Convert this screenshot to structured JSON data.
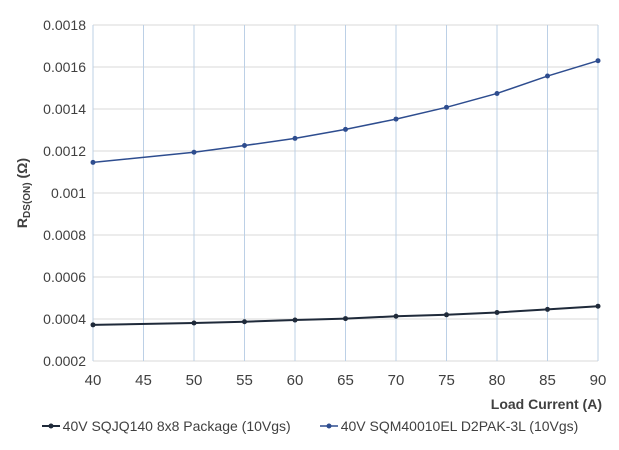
{
  "chart_data": {
    "type": "line",
    "xlabel": "Load Current (A)",
    "ylabel_main": "R",
    "ylabel_sub": "DS(ON)",
    "ylabel_unit": " (Ω)",
    "xlim": [
      40,
      90
    ],
    "ylim": [
      0.0002,
      0.0018
    ],
    "xticks": [
      "40",
      "45",
      "50",
      "55",
      "60",
      "65",
      "70",
      "75",
      "80",
      "85",
      "90"
    ],
    "yticks": [
      "0.0002",
      "0.0004",
      "0.0006",
      "0.0008",
      "0.001",
      "0.0012",
      "0.0014",
      "0.0016",
      "0.0018"
    ],
    "grid": true,
    "legend_position": "bottom",
    "x": [
      40,
      50,
      55,
      60,
      65,
      70,
      75,
      80,
      85,
      90
    ],
    "series": [
      {
        "name": "40V SQJQ140 8x8 Package (10Vgs)",
        "color": "#1f2a3a",
        "values": [
          0.000372,
          0.000381,
          0.000387,
          0.000395,
          0.000402,
          0.000413,
          0.00042,
          0.000431,
          0.000446,
          0.000461
        ]
      },
      {
        "name": "40V SQM40010EL D2PAK-3L (10Vgs)",
        "color": "#2e4d8f",
        "values": [
          0.001146,
          0.001194,
          0.001226,
          0.00126,
          0.001303,
          0.001352,
          0.001408,
          0.001474,
          0.001557,
          0.00163
        ]
      }
    ]
  }
}
